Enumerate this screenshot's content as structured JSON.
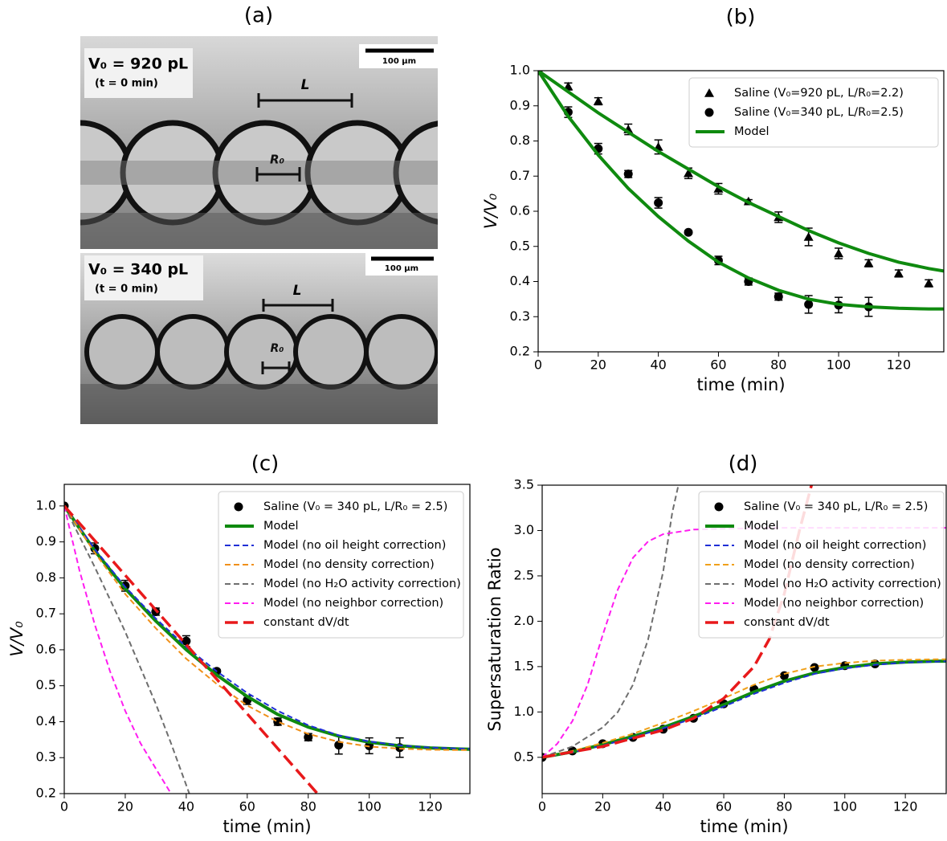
{
  "panel_a": {
    "label": "(a)",
    "top": {
      "volume": "V₀ = 920 pL",
      "time": "(t = 0 min)",
      "scale": "100 µm",
      "spacing": "L",
      "radius": "R₀"
    },
    "bottom": {
      "volume": "V₀ = 340 pL",
      "time": "(t = 0 min)",
      "scale": "100 µm",
      "spacing": "L",
      "radius": "R₀"
    }
  },
  "chart_data": [
    {
      "type": "line",
      "title": "(b)",
      "x_label": "time (min)",
      "y_label": "V/V₀",
      "xlim": [
        0,
        135
      ],
      "ylim": [
        0.2,
        1.0
      ],
      "xticks": [
        0,
        20,
        40,
        60,
        80,
        100,
        120
      ],
      "yticks": [
        0.2,
        0.3,
        0.4,
        0.5,
        0.6,
        0.7,
        0.8,
        0.9,
        {
          "value": 1,
          "label": "1.0"
        }
      ],
      "legend": "upper right",
      "series": [
        {
          "name": "Saline (V₀=920 pL, L/R₀=2.2)",
          "color": "#000000",
          "marker": "triangle",
          "x": [
            0,
            10,
            20,
            30,
            40,
            50,
            60,
            70,
            80,
            90,
            100,
            110,
            120,
            130
          ],
          "values": [
            1.0,
            0.955,
            0.913,
            0.833,
            0.783,
            0.708,
            0.664,
            0.628,
            0.583,
            0.527,
            0.48,
            0.452,
            0.423,
            0.395
          ],
          "errors": [
            0,
            0.01,
            0.01,
            0.015,
            0.02,
            0.015,
            0.015,
            0.005,
            0.015,
            0.025,
            0.015,
            0.01,
            0.01,
            0.01
          ]
        },
        {
          "name": "Saline (V₀=340 pL, L/R₀=2.5)",
          "color": "#000000",
          "marker": "circle",
          "x": [
            0,
            10,
            20,
            30,
            40,
            50,
            60,
            70,
            80,
            90,
            100,
            110
          ],
          "values": [
            1.0,
            0.882,
            0.778,
            0.706,
            0.624,
            0.54,
            0.46,
            0.4,
            0.357,
            0.335,
            0.333,
            0.328
          ],
          "errors": [
            0,
            0.015,
            0.015,
            0.01,
            0.015,
            0.005,
            0.012,
            0.01,
            0.01,
            0.025,
            0.022,
            0.027
          ]
        },
        {
          "name": "Model",
          "color": "#0f8a0f",
          "dash": "solid",
          "x": [
            0,
            10,
            20,
            30,
            40,
            50,
            60,
            70,
            80,
            90,
            100,
            110,
            120,
            130,
            135
          ],
          "values": [
            1.0,
            0.94,
            0.88,
            0.825,
            0.77,
            0.72,
            0.67,
            0.625,
            0.585,
            0.545,
            0.51,
            0.48,
            0.455,
            0.437,
            0.43
          ]
        },
        {
          "name": null,
          "color": "#0f8a0f",
          "dash": "solid",
          "x": [
            0,
            10,
            20,
            30,
            40,
            50,
            60,
            70,
            80,
            90,
            100,
            110,
            120,
            130,
            135
          ],
          "values": [
            1.0,
            0.87,
            0.76,
            0.665,
            0.585,
            0.515,
            0.455,
            0.41,
            0.375,
            0.35,
            0.335,
            0.328,
            0.324,
            0.322,
            0.322
          ]
        }
      ]
    },
    {
      "type": "line",
      "title": "(c)",
      "x_label": "time (min)",
      "y_label": "V/V₀",
      "xlim": [
        0,
        133
      ],
      "ylim": [
        0.2,
        1.06
      ],
      "xticks": [
        0,
        20,
        40,
        60,
        80,
        100,
        120
      ],
      "yticks": [
        0.2,
        0.3,
        0.4,
        0.5,
        0.6,
        0.7,
        0.8,
        0.9,
        {
          "value": 1,
          "label": "1.0"
        }
      ],
      "legend": "upper right",
      "series": [
        {
          "name": "Saline (V₀ = 340 pL, L/R₀ = 2.5)",
          "color": "#000000",
          "marker": "circle",
          "x": [
            0,
            10,
            20,
            30,
            40,
            50,
            60,
            70,
            80,
            90,
            100,
            110
          ],
          "values": [
            1.0,
            0.882,
            0.778,
            0.706,
            0.624,
            0.54,
            0.46,
            0.4,
            0.357,
            0.335,
            0.333,
            0.328
          ],
          "errors": [
            0,
            0.015,
            0.015,
            0.01,
            0.015,
            0.005,
            0.012,
            0.01,
            0.01,
            0.025,
            0.022,
            0.027
          ]
        },
        {
          "name": "Model",
          "color": "#0f8a0f",
          "dash": "solid",
          "x": [
            0,
            10,
            20,
            30,
            40,
            50,
            60,
            70,
            80,
            90,
            100,
            110,
            120,
            130,
            135
          ],
          "values": [
            1.0,
            0.875,
            0.77,
            0.68,
            0.6,
            0.53,
            0.47,
            0.42,
            0.385,
            0.36,
            0.343,
            0.333,
            0.327,
            0.324,
            0.323
          ]
        },
        {
          "name": "Model (no oil height correction)",
          "color": "#1f2fd6",
          "dash": "dashed",
          "x": [
            0,
            10,
            20,
            30,
            40,
            50,
            60,
            70,
            80,
            90,
            100,
            110,
            120,
            130,
            135
          ],
          "values": [
            1.0,
            0.88,
            0.775,
            0.687,
            0.608,
            0.54,
            0.48,
            0.43,
            0.39,
            0.362,
            0.345,
            0.334,
            0.328,
            0.325,
            0.324
          ]
        },
        {
          "name": "Model (no density correction)",
          "color": "#f0901a",
          "dash": "dashed",
          "x": [
            0,
            10,
            20,
            30,
            40,
            50,
            60,
            70,
            80,
            90,
            100,
            110,
            120,
            130,
            135
          ],
          "values": [
            1.0,
            0.87,
            0.755,
            0.66,
            0.575,
            0.505,
            0.445,
            0.4,
            0.366,
            0.344,
            0.331,
            0.325,
            0.322,
            0.321,
            0.321
          ]
        },
        {
          "name": "Model (no H₂O activity correction)",
          "color": "#6e6e6e",
          "dash": "dashed",
          "x": [
            0,
            10,
            20,
            30,
            35,
            41
          ],
          "values": [
            1.0,
            0.83,
            0.65,
            0.45,
            0.34,
            0.2
          ]
        },
        {
          "name": "Model (no neighbor correction)",
          "color": "#ff1cf0",
          "dash": "dashed",
          "x": [
            0,
            5,
            10,
            15,
            20,
            25,
            30,
            35
          ],
          "values": [
            1.0,
            0.82,
            0.67,
            0.54,
            0.43,
            0.34,
            0.27,
            0.2
          ]
        },
        {
          "name": "constant dV/dt",
          "color": "#e8191b",
          "dash": "long",
          "x": [
            0,
            83
          ],
          "values": [
            1.0,
            0.2
          ]
        }
      ]
    },
    {
      "type": "line",
      "title": "(d)",
      "x_label": "time (min)",
      "y_label": "Supersaturation Ratio",
      "xlim": [
        0,
        133.5
      ],
      "ylim": [
        0.1,
        3.5
      ],
      "xticks": [
        0,
        20,
        40,
        60,
        80,
        100,
        120
      ],
      "yticks": [
        0.5,
        {
          "value": 1,
          "label": "1.0"
        },
        1.5,
        {
          "value": 2,
          "label": "2.0"
        },
        2.5,
        {
          "value": 3,
          "label": "3.0"
        },
        3.5
      ],
      "legend": "upper right",
      "series": [
        {
          "name": "Saline (V₀ = 340 pL, L/R₀ = 2.5)",
          "color": "#000000",
          "marker": "circle",
          "x": [
            0,
            10,
            20,
            30,
            40,
            50,
            60,
            70,
            80,
            90,
            100,
            110
          ],
          "values": [
            0.5,
            0.57,
            0.65,
            0.72,
            0.81,
            0.93,
            1.09,
            1.25,
            1.4,
            1.49,
            1.51,
            1.53
          ]
        },
        {
          "name": "Model",
          "color": "#0f8a0f",
          "dash": "solid",
          "x": [
            0,
            10,
            20,
            30,
            40,
            50,
            60,
            70,
            80,
            90,
            100,
            110,
            120,
            130,
            135
          ],
          "values": [
            0.5,
            0.56,
            0.64,
            0.73,
            0.83,
            0.95,
            1.08,
            1.22,
            1.34,
            1.43,
            1.49,
            1.53,
            1.55,
            1.56,
            1.56
          ]
        },
        {
          "name": "Model (no oil height correction)",
          "color": "#1f2fd6",
          "dash": "dashed",
          "x": [
            0,
            10,
            20,
            30,
            40,
            50,
            60,
            70,
            80,
            90,
            100,
            110,
            120,
            130,
            135
          ],
          "values": [
            0.5,
            0.555,
            0.63,
            0.72,
            0.82,
            0.93,
            1.06,
            1.2,
            1.32,
            1.42,
            1.48,
            1.52,
            1.545,
            1.555,
            1.56
          ]
        },
        {
          "name": "Model (no density correction)",
          "color": "#f0a01a",
          "dash": "dashed",
          "x": [
            0,
            10,
            20,
            30,
            40,
            50,
            60,
            70,
            80,
            90,
            100,
            110,
            120,
            130,
            135
          ],
          "values": [
            0.5,
            0.57,
            0.66,
            0.76,
            0.88,
            1.01,
            1.15,
            1.3,
            1.42,
            1.5,
            1.54,
            1.565,
            1.575,
            1.58,
            1.58
          ]
        },
        {
          "name": "Model (no H₂O activity correction)",
          "color": "#6e6e6e",
          "dash": "dashed",
          "x": [
            0,
            10,
            20,
            25,
            30,
            35,
            40,
            43,
            45
          ],
          "values": [
            0.5,
            0.62,
            0.83,
            1.0,
            1.3,
            1.8,
            2.55,
            3.2,
            3.5
          ]
        },
        {
          "name": "Model (no neighbor correction)",
          "color": "#ff1cf0",
          "dash": "dashed",
          "x": [
            0,
            5,
            10,
            15,
            20,
            25,
            30,
            35,
            40,
            50,
            60,
            80,
            135
          ],
          "values": [
            0.5,
            0.65,
            0.9,
            1.3,
            1.85,
            2.35,
            2.7,
            2.88,
            2.96,
            3.01,
            3.02,
            3.03,
            3.03
          ]
        },
        {
          "name": "constant dV/dt",
          "color": "#e8191b",
          "dash": "long",
          "x": [
            0,
            20,
            40,
            50,
            60,
            70,
            75,
            80,
            85,
            89
          ],
          "values": [
            0.5,
            0.62,
            0.8,
            0.93,
            1.15,
            1.5,
            1.8,
            2.3,
            3.0,
            3.5
          ]
        }
      ]
    }
  ]
}
